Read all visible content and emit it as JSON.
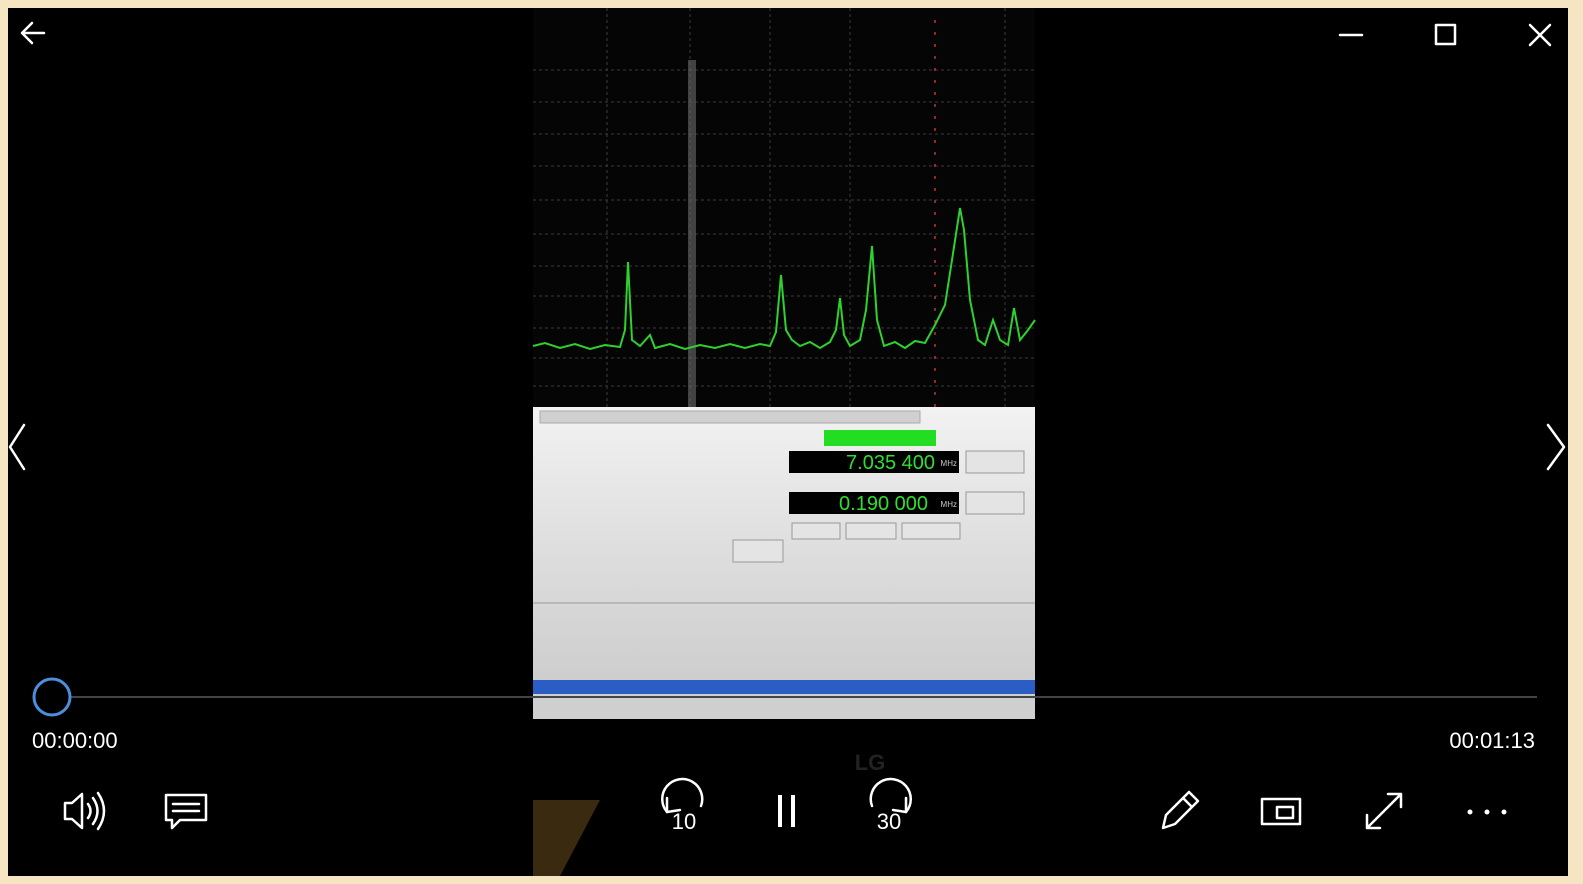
{
  "player": {
    "current_time": "00:00:00",
    "duration": "00:01:13",
    "skip_back": "10",
    "skip_forward": "30"
  },
  "video": {
    "frequency": "7.035 400",
    "span": "0.190 000",
    "unit": "MHz",
    "brand": "LG"
  }
}
